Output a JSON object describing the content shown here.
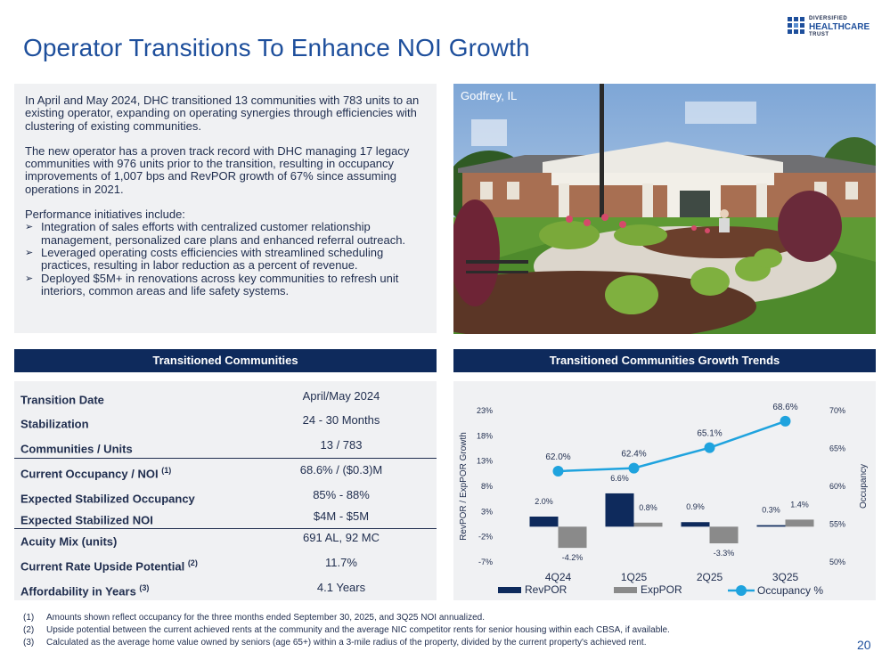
{
  "title": "Operator Transitions To Enhance NOI Growth",
  "logo": {
    "line1": "DIVERSIFIED",
    "line2": "HEALTHCARE",
    "line3": "TRUST"
  },
  "intro": {
    "p1": "In April and May 2024, DHC transitioned 13 communities with 783 units to an existing operator, expanding on operating synergies through efficiencies with clustering of existing communities.",
    "p2": "The new operator has a proven track record with DHC managing 17 legacy communities with 976 units prior to the transition, resulting in occupancy improvements of 1,007 bps and RevPOR growth of 67% since assuming operations in 2021.",
    "lead": "Performance initiatives include:",
    "bullets": [
      "Integration of sales efforts with centralized customer relationship management, personalized care plans and enhanced referral outreach.",
      "Leveraged operating costs efficiencies with streamlined scheduling practices, resulting in labor reduction as a percent of revenue.",
      "Deployed $5M+ in renovations across key communities to refresh unit interiors, common areas and life safety systems."
    ],
    "bullet_glyph": "➢"
  },
  "photo": {
    "label": "Godfrey, IL"
  },
  "table": {
    "header": "Transitioned Communities",
    "rows": [
      {
        "label": "Transition Date",
        "sup": "",
        "value": "April/May 2024"
      },
      {
        "label": "Stabilization",
        "sup": "",
        "value": "24 - 30 Months"
      },
      {
        "label": "Communities / Units",
        "sup": "",
        "value": "13 / 783"
      },
      {
        "label": "Current Occupancy / NOI ",
        "sup": "(1)",
        "value": "68.6% / ($0.3)M"
      },
      {
        "label": "Expected Stabilized Occupancy",
        "sup": "",
        "value": "85% - 88%"
      },
      {
        "label": "Expected Stabilized NOI",
        "sup": "",
        "value": "$4M - $5M"
      },
      {
        "label": "Acuity Mix (units)",
        "sup": "",
        "value": "691 AL, 92 MC"
      },
      {
        "label": "Current Rate Upside Potential ",
        "sup": "(2)",
        "value": "11.7%"
      },
      {
        "label": "Affordability in Years ",
        "sup": "(3)",
        "value": "4.1 Years"
      }
    ]
  },
  "chart_header": "Transitioned Communities Growth Trends",
  "chart_data": {
    "type": "bar",
    "categories": [
      "4Q24",
      "1Q25",
      "2Q25",
      "3Q25"
    ],
    "series": [
      {
        "name": "RevPOR",
        "values": [
          2.0,
          6.6,
          0.9,
          0.3
        ],
        "labels": [
          "2.0%",
          "6.6%",
          "0.9%",
          "0.3%"
        ],
        "color": "#0e2a5c"
      },
      {
        "name": "ExpPOR",
        "values": [
          -4.2,
          0.8,
          -3.3,
          1.4
        ],
        "labels": [
          "-4.2%",
          "0.8%",
          "-3.3%",
          "1.4%"
        ],
        "color": "#8a8a8a"
      },
      {
        "name": "Occupancy %",
        "type": "line",
        "axis": "right",
        "values": [
          62.0,
          62.4,
          65.1,
          68.6
        ],
        "labels": [
          "62.0%",
          "62.4%",
          "65.1%",
          "68.6%"
        ],
        "color": "#1fa3de"
      }
    ],
    "ylabel": "RevPOR / ExpPOR Growth",
    "ylabel_right": "Occupancy",
    "ylim": [
      -7,
      23
    ],
    "yticks": [
      "23%",
      "18%",
      "13%",
      "8%",
      "3%",
      "-2%",
      "-7%"
    ],
    "ylim_right": [
      50,
      70
    ],
    "yticks_right": [
      "70%",
      "65%",
      "60%",
      "55%",
      "50%"
    ],
    "legend": "bottom",
    "grid": false
  },
  "footnotes": [
    {
      "n": "(1)",
      "t": "Amounts shown reflect occupancy for the three months ended September 30, 2025, and 3Q25 NOI annualized."
    },
    {
      "n": "(2)",
      "t": "Upside potential between the current achieved rents at the community and the average NIC competitor rents for senior housing within each CBSA, if available."
    },
    {
      "n": "(3)",
      "t": "Calculated as the average home value owned by seniors (age 65+) within a 3-mile radius of the property, divided by the current property's achieved rent."
    }
  ],
  "page_number": "20"
}
